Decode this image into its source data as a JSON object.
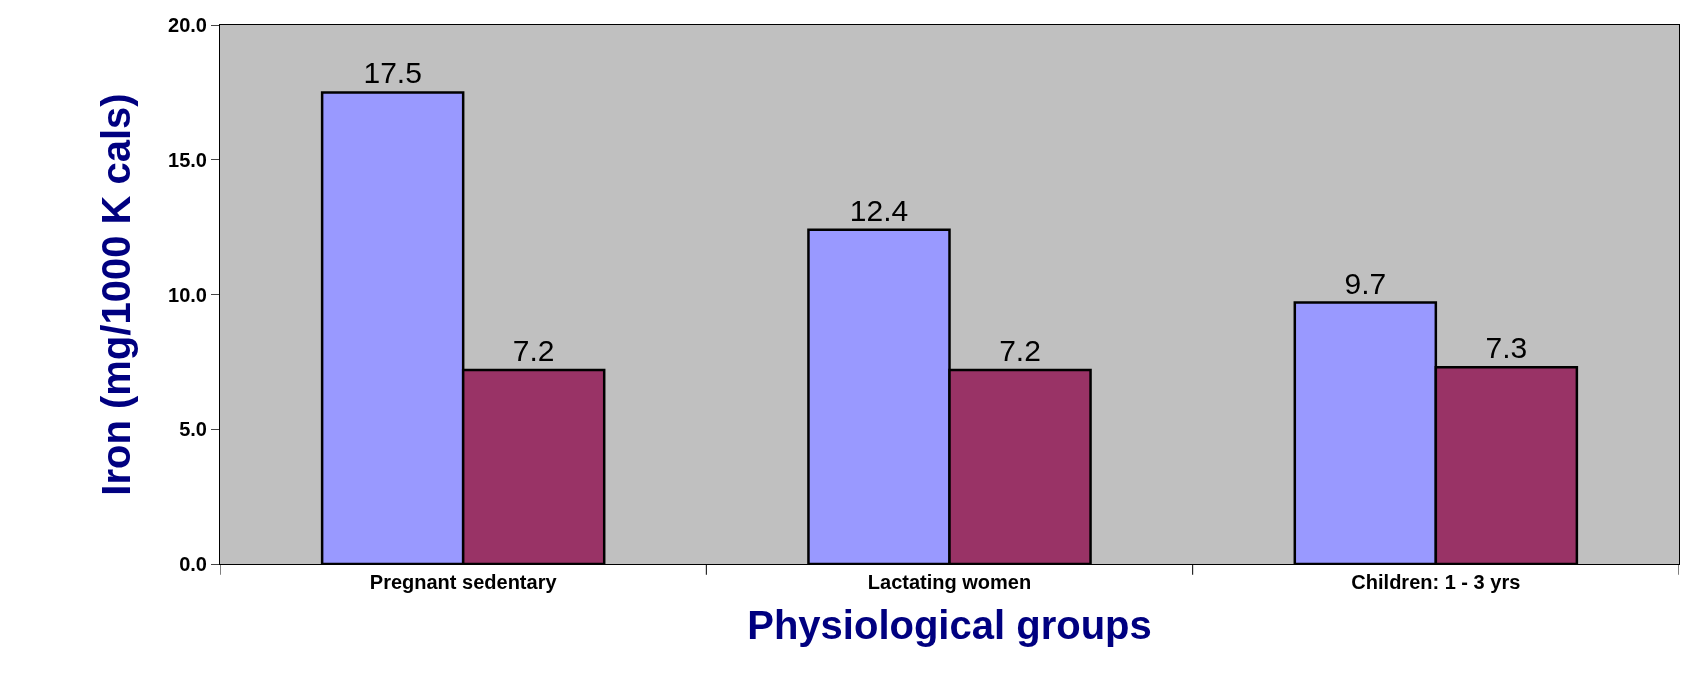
{
  "chart_data": {
    "type": "bar",
    "xlabel": "Physiological groups",
    "ylabel": "Iron (mg/1000 K cals)",
    "categories": [
      "Pregnant sedentary",
      "Lactating women",
      "Children: 1 - 3 yrs"
    ],
    "series": [
      {
        "color": "#9999ff",
        "values": [
          17.5,
          12.4,
          9.7
        ]
      },
      {
        "color": "#993366",
        "values": [
          7.2,
          7.2,
          7.3
        ]
      }
    ],
    "ylim": [
      0,
      20
    ],
    "yticks": [
      {
        "value": 0,
        "label": "0.0"
      },
      {
        "value": 5,
        "label": "5.0"
      },
      {
        "value": 10,
        "label": "10.0"
      },
      {
        "value": 15,
        "label": "15.0"
      },
      {
        "value": 20,
        "label": "20.0"
      }
    ],
    "data_labels": true
  }
}
